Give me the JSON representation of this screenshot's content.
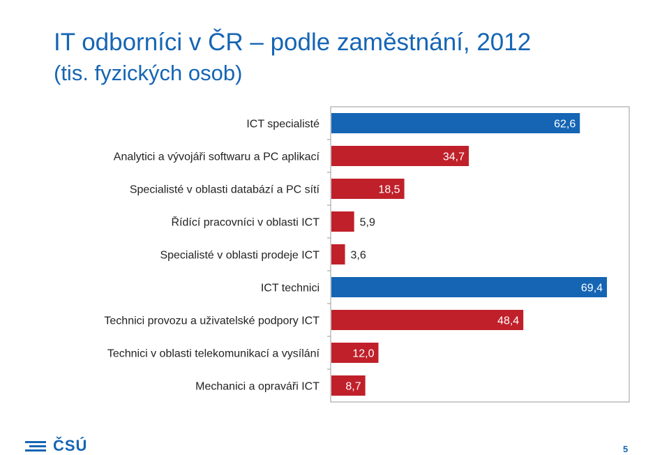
{
  "slide": {
    "title": "IT odborníci v ČR – podle zaměstnání, 2012",
    "subtitle": "(tis. fyzických osob)",
    "logo_text": "ČSÚ",
    "page_number": "5"
  },
  "colors": {
    "title": "#1565b4",
    "bar_blue": "#1565b4",
    "bar_red": "#c0202a",
    "axis": "#999999"
  },
  "chart_data": {
    "type": "bar",
    "orientation": "horizontal",
    "categories": [
      "ICT specialisté",
      "Analytici a vývojáři softwaru a PC aplikací",
      "Specialisté v oblasti databází a PC sítí",
      "Řídící pracovníci v oblasti ICT",
      "Specialisté v oblasti prodeje ICT",
      "ICT technici",
      "Technici provozu a uživatelské podpory ICT",
      "Technici v oblasti telekomunikací a vysílání",
      "Mechanici a opraváři ICT"
    ],
    "values": [
      62.6,
      34.7,
      18.5,
      5.9,
      3.6,
      69.4,
      48.4,
      12.0,
      8.7
    ],
    "value_labels": [
      "62,6",
      "34,7",
      "18,5",
      "5,9",
      "3,6",
      "69,4",
      "48,4",
      "12,0",
      "8,7"
    ],
    "bar_colors": [
      "blue",
      "red",
      "red",
      "red",
      "red",
      "blue",
      "red",
      "red",
      "red"
    ],
    "xlim": [
      0,
      75
    ],
    "grid": false,
    "legend": "none",
    "title": "",
    "xlabel": "",
    "ylabel": ""
  }
}
